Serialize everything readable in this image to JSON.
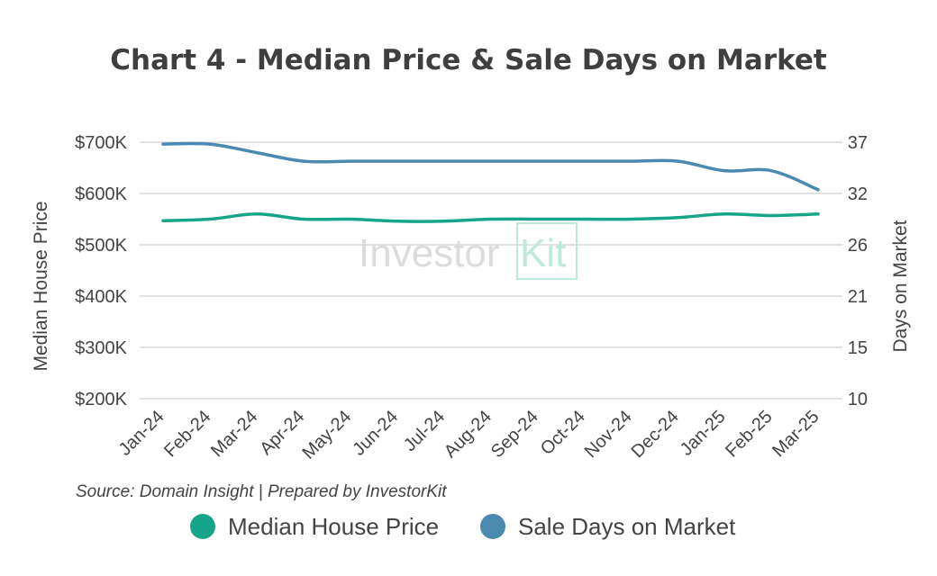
{
  "chart_data": {
    "type": "line",
    "title": "Chart 4 - Median Price & Sale Days on Market",
    "categories": [
      "Jan-24",
      "Feb-24",
      "Mar-24",
      "Apr-24",
      "May-24",
      "Jun-24",
      "Jul-24",
      "Aug-24",
      "Sep-24",
      "Oct-24",
      "Nov-24",
      "Dec-24",
      "Jan-25",
      "Feb-25",
      "Mar-25"
    ],
    "ylabel": "Median House Price",
    "y2label": "Days on Market",
    "ylim": [
      200000,
      700000
    ],
    "yticks": [
      "$200K",
      "$300K",
      "$400K",
      "$500K",
      "$600K",
      "$700K"
    ],
    "y2lim": [
      10,
      37
    ],
    "y2ticks": [
      "10",
      "15",
      "21",
      "26",
      "32",
      "37"
    ],
    "series": [
      {
        "name": "Median House Price",
        "axis": "left",
        "color": "#17a589",
        "values": [
          547000,
          550000,
          560000,
          550000,
          550000,
          546000,
          546000,
          550000,
          550000,
          550000,
          550000,
          553000,
          560000,
          557000,
          560000
        ]
      },
      {
        "name": "Sale Days on Market",
        "axis": "right",
        "color": "#4a89b0",
        "values": [
          36.8,
          36.8,
          35.9,
          35.0,
          35.0,
          35.0,
          35.0,
          35.0,
          35.0,
          35.0,
          35.0,
          35.0,
          34.0,
          34.0,
          32.0
        ]
      }
    ],
    "legend": "bottom",
    "grid": true
  },
  "source_note": "Source: Domain Insight | Prepared by InvestorKit",
  "watermark": {
    "text_main": "Investor",
    "text_accent": "Kit"
  },
  "colors": {
    "grid": "#d9d9d9",
    "text": "#444444",
    "watermark": "#dcdcdc",
    "watermark_accent": "#bfe8dd"
  }
}
